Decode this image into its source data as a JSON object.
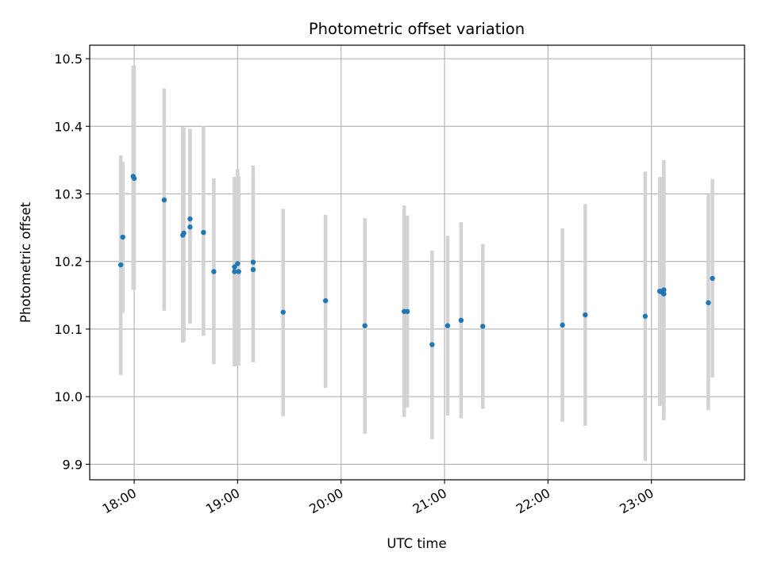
{
  "chart_data": {
    "type": "scatter",
    "title": "Photometric offset variation",
    "xlabel": "UTC time",
    "ylabel": "Photometric offset",
    "x_unit": "hour of day (UTC)",
    "xlim": [
      17.57,
      23.9
    ],
    "ylim": [
      9.877,
      10.52
    ],
    "grid": true,
    "marker_color": "#1f77b4",
    "errorbar_color": "#d3d3d3",
    "x_ticks": [
      {
        "value": 18,
        "label": "18:00"
      },
      {
        "value": 19,
        "label": "19:00"
      },
      {
        "value": 20,
        "label": "20:00"
      },
      {
        "value": 21,
        "label": "21:00"
      },
      {
        "value": 22,
        "label": "22:00"
      },
      {
        "value": 23,
        "label": "23:00"
      }
    ],
    "y_ticks": [
      {
        "value": 9.9,
        "label": "9.9"
      },
      {
        "value": 10.0,
        "label": "10.0"
      },
      {
        "value": 10.1,
        "label": "10.1"
      },
      {
        "value": 10.2,
        "label": "10.2"
      },
      {
        "value": 10.3,
        "label": "10.3"
      },
      {
        "value": 10.4,
        "label": "10.4"
      },
      {
        "value": 10.5,
        "label": "10.5"
      }
    ],
    "points": [
      {
        "time": "17:52",
        "x": 17.87,
        "y": 10.195,
        "ylo": 10.032,
        "yhi": 10.357
      },
      {
        "time": "17:53",
        "x": 17.89,
        "y": 10.236,
        "ylo": 10.124,
        "yhi": 10.348
      },
      {
        "time": "17:59",
        "x": 17.99,
        "y": 10.326,
        "ylo": 10.158,
        "yhi": 10.49
      },
      {
        "time": "18:00",
        "x": 18.0,
        "y": 10.323,
        "ylo": 10.158,
        "yhi": 10.49
      },
      {
        "time": "18:17",
        "x": 18.29,
        "y": 10.291,
        "ylo": 10.127,
        "yhi": 10.456
      },
      {
        "time": "18:28",
        "x": 18.47,
        "y": 10.239,
        "ylo": 10.08,
        "yhi": 10.399
      },
      {
        "time": "18:28",
        "x": 18.48,
        "y": 10.242,
        "ylo": 10.082,
        "yhi": 10.398
      },
      {
        "time": "18:32",
        "x": 18.54,
        "y": 10.251,
        "ylo": 10.108,
        "yhi": 10.396
      },
      {
        "time": "18:33",
        "x": 18.54,
        "y": 10.263,
        "ylo": 10.11,
        "yhi": 10.396
      },
      {
        "time": "18:40",
        "x": 18.67,
        "y": 10.243,
        "ylo": 10.09,
        "yhi": 10.4
      },
      {
        "time": "18:46",
        "x": 18.77,
        "y": 10.185,
        "ylo": 10.048,
        "yhi": 10.323
      },
      {
        "time": "18:58",
        "x": 18.97,
        "y": 10.192,
        "ylo": 10.045,
        "yhi": 10.325
      },
      {
        "time": "18:58",
        "x": 18.97,
        "y": 10.185,
        "ylo": 10.045,
        "yhi": 10.325
      },
      {
        "time": "19:00",
        "x": 19.0,
        "y": 10.197,
        "ylo": 10.046,
        "yhi": 10.337
      },
      {
        "time": "19:01",
        "x": 19.01,
        "y": 10.185,
        "ylo": 10.046,
        "yhi": 10.326
      },
      {
        "time": "19:09",
        "x": 19.15,
        "y": 10.199,
        "ylo": 10.051,
        "yhi": 10.342
      },
      {
        "time": "19:09",
        "x": 19.15,
        "y": 10.188,
        "ylo": 10.053,
        "yhi": 10.324
      },
      {
        "time": "19:26",
        "x": 19.44,
        "y": 10.125,
        "ylo": 9.971,
        "yhi": 10.278
      },
      {
        "time": "19:51",
        "x": 19.85,
        "y": 10.142,
        "ylo": 10.013,
        "yhi": 10.269
      },
      {
        "time": "20:14",
        "x": 20.23,
        "y": 10.105,
        "ylo": 9.945,
        "yhi": 10.264
      },
      {
        "time": "20:37",
        "x": 20.61,
        "y": 10.126,
        "ylo": 9.97,
        "yhi": 10.283
      },
      {
        "time": "20:38",
        "x": 20.64,
        "y": 10.126,
        "ylo": 9.984,
        "yhi": 10.268
      },
      {
        "time": "20:53",
        "x": 20.88,
        "y": 10.077,
        "ylo": 9.937,
        "yhi": 10.216
      },
      {
        "time": "21:02",
        "x": 21.03,
        "y": 10.105,
        "ylo": 9.972,
        "yhi": 10.238
      },
      {
        "time": "21:09",
        "x": 21.16,
        "y": 10.113,
        "ylo": 9.968,
        "yhi": 10.258
      },
      {
        "time": "21:22",
        "x": 21.37,
        "y": 10.104,
        "ylo": 9.982,
        "yhi": 10.226
      },
      {
        "time": "22:08",
        "x": 22.14,
        "y": 10.106,
        "ylo": 9.963,
        "yhi": 10.249
      },
      {
        "time": "22:21",
        "x": 22.36,
        "y": 10.121,
        "ylo": 9.957,
        "yhi": 10.285
      },
      {
        "time": "22:56",
        "x": 22.94,
        "y": 10.119,
        "ylo": 9.905,
        "yhi": 10.333
      },
      {
        "time": "23:05",
        "x": 23.08,
        "y": 10.156,
        "ylo": 9.986,
        "yhi": 10.325
      },
      {
        "time": "23:06",
        "x": 23.1,
        "y": 10.155,
        "ylo": 9.988,
        "yhi": 10.325
      },
      {
        "time": "23:07",
        "x": 23.12,
        "y": 10.152,
        "ylo": 9.965,
        "yhi": 10.35
      },
      {
        "time": "23:07",
        "x": 23.12,
        "y": 10.158,
        "ylo": 9.968,
        "yhi": 10.348
      },
      {
        "time": "23:33",
        "x": 23.55,
        "y": 10.139,
        "ylo": 9.98,
        "yhi": 10.299
      },
      {
        "time": "23:35",
        "x": 23.59,
        "y": 10.175,
        "ylo": 10.028,
        "yhi": 10.322
      }
    ]
  }
}
